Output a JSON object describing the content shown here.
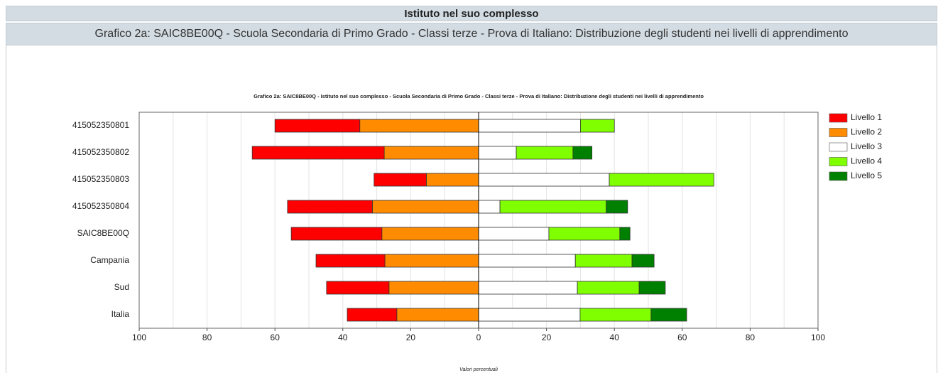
{
  "header": {
    "title": "Istituto nel suo complesso",
    "subtitle": "Grafico 2a: SAIC8BE00Q - Scuola Secondaria di Primo Grado - Classi terze - Prova di Italiano: Distribuzione degli studenti nei livelli di apprendimento"
  },
  "chart_data": {
    "type": "bar",
    "orientation": "horizontal",
    "stacked": true,
    "title": "Grafico 2a: SAIC8BE00Q - Istituto nel suo complesso - Scuola Secondaria di Primo Grado - Classi terze - Prova di Italiano: Distribuzione degli studenti nei livelli di apprendimento",
    "x_label": "Valori percentuali",
    "categories": [
      "415052350801",
      "415052350802",
      "415052350803",
      "415052350804",
      "SAIC8BE00Q",
      "Campania",
      "Sud",
      "Italia"
    ],
    "series": [
      {
        "name": "Livello 1",
        "color": "#ff0000",
        "values": [
          -25,
          -38.9,
          -15.4,
          -25,
          -26.7,
          -20.3,
          -18.4,
          -14.6
        ]
      },
      {
        "name": "Livello 2",
        "color": "#ff8c00",
        "values": [
          -35,
          -27.8,
          -15.4,
          -31.3,
          -28.5,
          -27.6,
          -26.4,
          -24.1
        ]
      },
      {
        "name": "Livello 3",
        "color": "#ffffff",
        "values": [
          30,
          11.1,
          38.5,
          6.3,
          20.7,
          28.5,
          29.1,
          29.9
        ]
      },
      {
        "name": "Livello 4",
        "color": "#7fff00",
        "values": [
          10,
          16.7,
          30.8,
          31.3,
          20.9,
          16.7,
          18.2,
          20.9
        ]
      },
      {
        "name": "Livello 5",
        "color": "#008000",
        "values": [
          0,
          5.6,
          0,
          6.3,
          3.0,
          6.5,
          7.7,
          10.5
        ]
      }
    ],
    "xlim": [
      -100,
      100
    ],
    "xticks": [
      {
        "value": -100,
        "label": "100"
      },
      {
        "value": -80,
        "label": "80"
      },
      {
        "value": -60,
        "label": "60"
      },
      {
        "value": -40,
        "label": "40"
      },
      {
        "value": -20,
        "label": "20"
      },
      0,
      20,
      40,
      60,
      80,
      100
    ],
    "x_minor_ticks": [
      -90,
      -70,
      -50,
      -30,
      -10,
      10,
      30,
      50,
      70,
      90
    ],
    "grid": true,
    "legend": "right"
  }
}
